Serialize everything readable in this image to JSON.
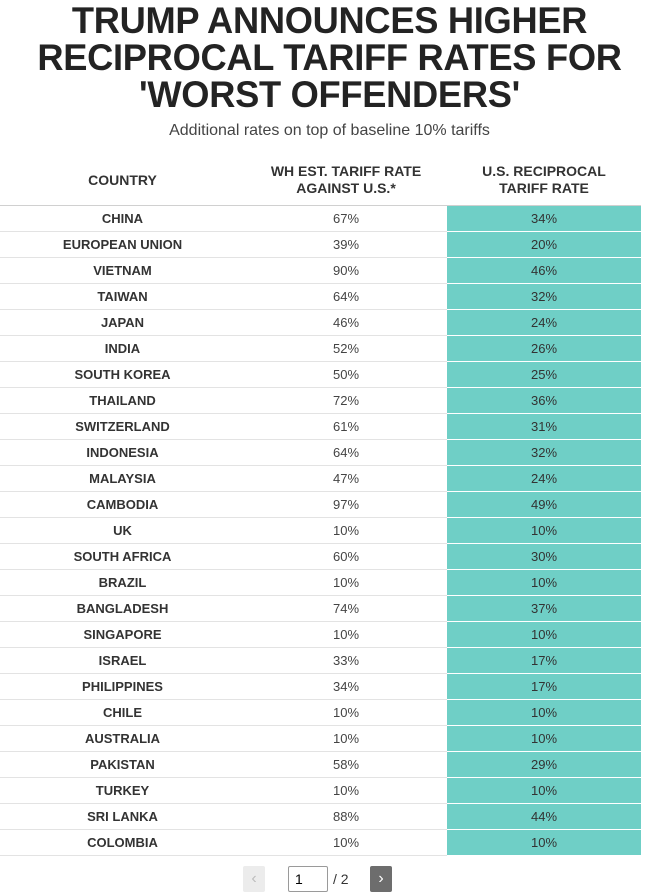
{
  "chart_data": {
    "type": "table",
    "title_lines": [
      "TRUMP ANNOUNCES HIGHER",
      "RECIPROCAL TARIFF RATES FOR",
      "'WORST OFFENDERS'"
    ],
    "subtitle": "Additional rates on top of baseline 10% tariffs",
    "headers": {
      "country": "COUNTRY",
      "wh_line1": "WH EST. TARIFF RATE",
      "wh_line2": "AGAINST U.S.*",
      "recip_line1": "U.S. RECIPROCAL",
      "recip_line2": "TARIFF RATE"
    },
    "rows": [
      {
        "country": "CHINA",
        "wh_rate": "67%",
        "us_rate": "34%"
      },
      {
        "country": "EUROPEAN UNION",
        "wh_rate": "39%",
        "us_rate": "20%"
      },
      {
        "country": "VIETNAM",
        "wh_rate": "90%",
        "us_rate": "46%"
      },
      {
        "country": "TAIWAN",
        "wh_rate": "64%",
        "us_rate": "32%"
      },
      {
        "country": "JAPAN",
        "wh_rate": "46%",
        "us_rate": "24%"
      },
      {
        "country": "INDIA",
        "wh_rate": "52%",
        "us_rate": "26%"
      },
      {
        "country": "SOUTH KOREA",
        "wh_rate": "50%",
        "us_rate": "25%"
      },
      {
        "country": "THAILAND",
        "wh_rate": "72%",
        "us_rate": "36%"
      },
      {
        "country": "SWITZERLAND",
        "wh_rate": "61%",
        "us_rate": "31%"
      },
      {
        "country": "INDONESIA",
        "wh_rate": "64%",
        "us_rate": "32%"
      },
      {
        "country": "MALAYSIA",
        "wh_rate": "47%",
        "us_rate": "24%"
      },
      {
        "country": "CAMBODIA",
        "wh_rate": "97%",
        "us_rate": "49%"
      },
      {
        "country": "UK",
        "wh_rate": "10%",
        "us_rate": "10%"
      },
      {
        "country": "SOUTH AFRICA",
        "wh_rate": "60%",
        "us_rate": "30%"
      },
      {
        "country": "BRAZIL",
        "wh_rate": "10%",
        "us_rate": "10%"
      },
      {
        "country": "BANGLADESH",
        "wh_rate": "74%",
        "us_rate": "37%"
      },
      {
        "country": "SINGAPORE",
        "wh_rate": "10%",
        "us_rate": "10%"
      },
      {
        "country": "ISRAEL",
        "wh_rate": "33%",
        "us_rate": "17%"
      },
      {
        "country": "PHILIPPINES",
        "wh_rate": "34%",
        "us_rate": "17%"
      },
      {
        "country": "CHILE",
        "wh_rate": "10%",
        "us_rate": "10%"
      },
      {
        "country": "AUSTRALIA",
        "wh_rate": "10%",
        "us_rate": "10%"
      },
      {
        "country": "PAKISTAN",
        "wh_rate": "58%",
        "us_rate": "29%"
      },
      {
        "country": "TURKEY",
        "wh_rate": "10%",
        "us_rate": "10%"
      },
      {
        "country": "SRI LANKA",
        "wh_rate": "88%",
        "us_rate": "44%"
      },
      {
        "country": "COLOMBIA",
        "wh_rate": "10%",
        "us_rate": "10%"
      }
    ]
  },
  "pagination": {
    "prev_icon": "‹",
    "next_icon": "›",
    "current_page": "1",
    "total_label": "/ 2"
  },
  "colors": {
    "highlight": "#6fcfc6"
  }
}
